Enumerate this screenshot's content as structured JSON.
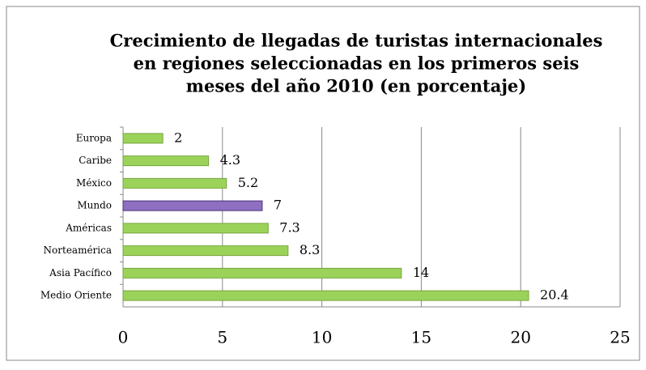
{
  "chart_data": {
    "type": "bar",
    "orientation": "horizontal",
    "title": [
      "Crecimiento de llegadas de turistas internacionales",
      "en regiones seleccionadas en los primeros seis",
      "meses del año 2010 (en porcentaje)"
    ],
    "categories": [
      "Europa",
      "Caribe",
      "México",
      "Mundo",
      "Américas",
      "Norteamérica",
      "Asia Pacífico",
      "Medio Oriente"
    ],
    "values": [
      2,
      4.3,
      5.2,
      7,
      7.3,
      8.3,
      14,
      20.4
    ],
    "colors": [
      "#9bd35a",
      "#9bd35a",
      "#9bd35a",
      "#8f6fc0",
      "#9bd35a",
      "#9bd35a",
      "#9bd35a",
      "#9bd35a"
    ],
    "xlim": [
      0,
      25
    ],
    "xticks": [
      0,
      5,
      10,
      15,
      20,
      25
    ],
    "grid": true
  }
}
